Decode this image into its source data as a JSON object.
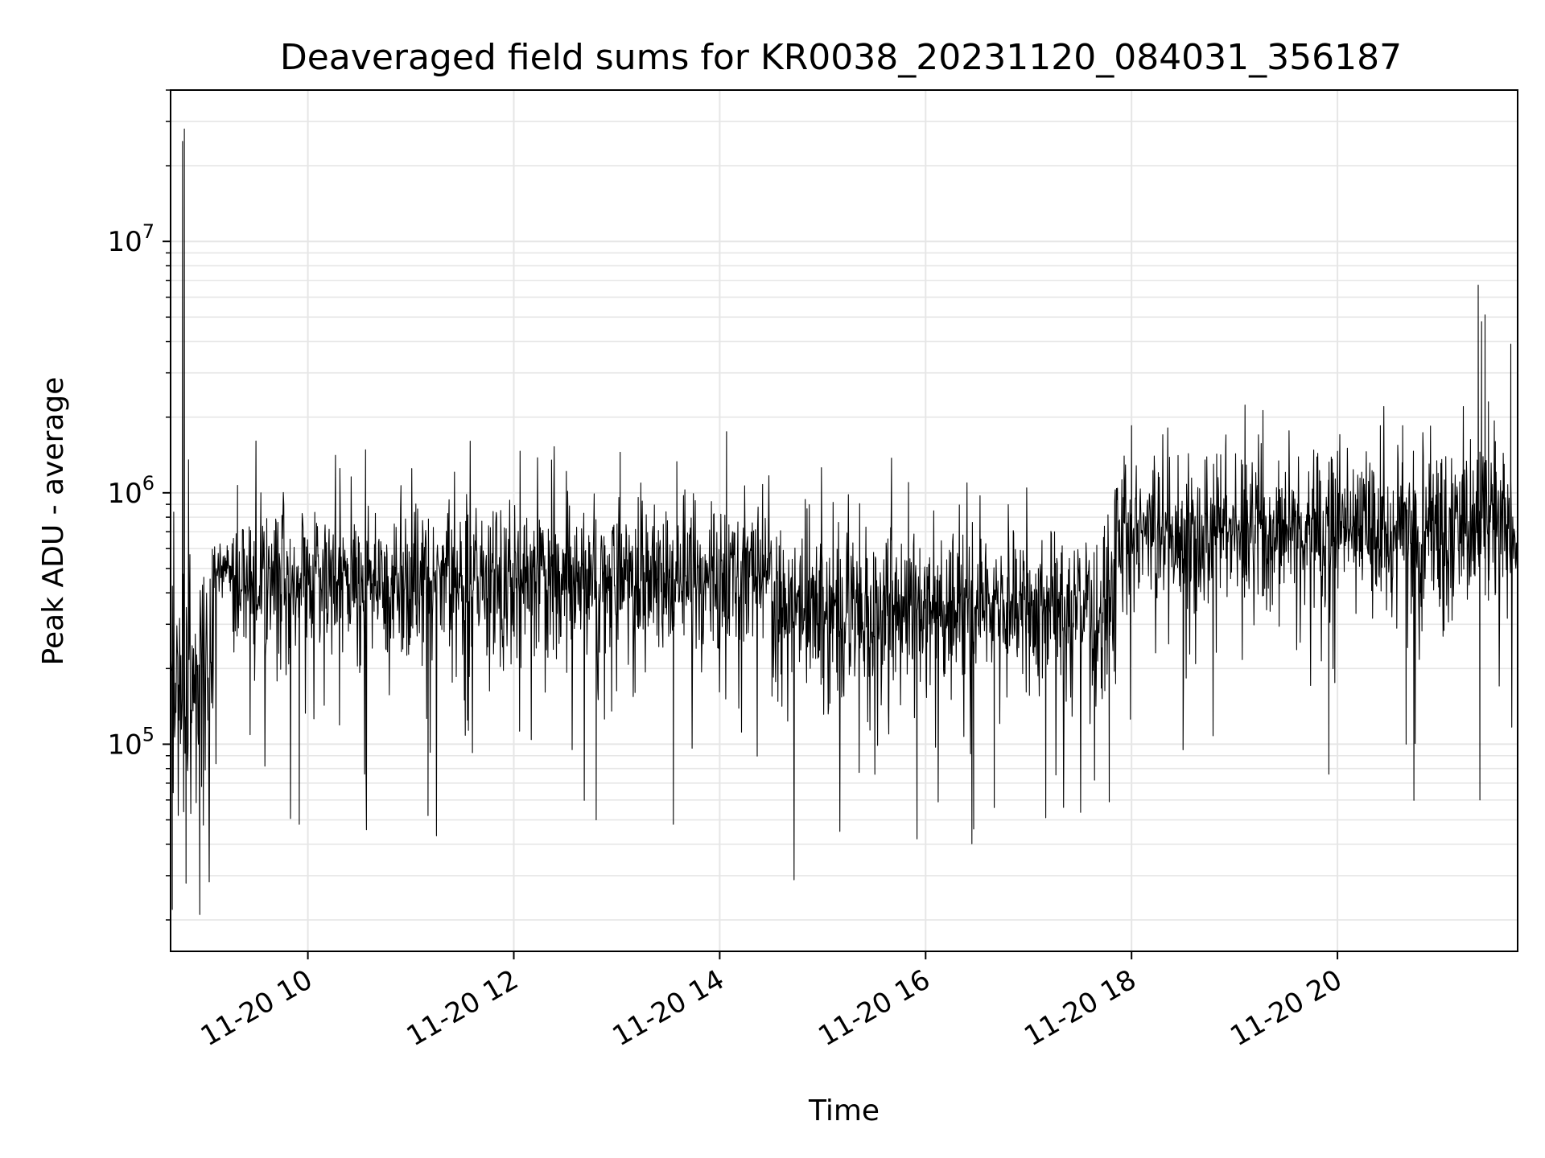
{
  "chart_data": {
    "type": "line",
    "title": "Deaveraged field sums for KR0038_20231120_084031_356187",
    "xlabel": "Time",
    "ylabel": "Peak ADU - average",
    "yscale": "log",
    "grid": true,
    "grid_minor": true,
    "line_color": "#000000",
    "grid_color": "#e6e6e6",
    "xlim": [
      "2023-11-20 08:40",
      "2023-11-20 21:45"
    ],
    "ylim": [
      15000,
      40000000
    ],
    "x_ticks": [
      {
        "time": "2023-11-20 10:00",
        "label": "11-20 10"
      },
      {
        "time": "2023-11-20 12:00",
        "label": "11-20 12"
      },
      {
        "time": "2023-11-20 14:00",
        "label": "11-20 14"
      },
      {
        "time": "2023-11-20 16:00",
        "label": "11-20 16"
      },
      {
        "time": "2023-11-20 18:00",
        "label": "11-20 18"
      },
      {
        "time": "2023-11-20 20:00",
        "label": "11-20 20"
      }
    ],
    "y_ticks": [
      {
        "value": 100000,
        "base": "10",
        "exp": "5"
      },
      {
        "value": 1000000,
        "base": "10",
        "exp": "6"
      },
      {
        "value": 10000000,
        "base": "10",
        "exp": "7"
      }
    ],
    "series": [
      {
        "baseline_segments": [
          {
            "start": "2023-11-20 08:40",
            "end": "2023-11-20 09:05",
            "median": 170000,
            "spread": 0.55
          },
          {
            "start": "2023-11-20 09:05",
            "end": "2023-11-20 09:15",
            "median": 500000,
            "spread": 0.12
          },
          {
            "start": "2023-11-20 09:15",
            "end": "2023-11-20 12:00",
            "median": 430000,
            "spread": 0.28
          },
          {
            "start": "2023-11-20 12:00",
            "end": "2023-11-20 14:30",
            "median": 460000,
            "spread": 0.28
          },
          {
            "start": "2023-11-20 14:30",
            "end": "2023-11-20 17:50",
            "median": 330000,
            "spread": 0.3
          },
          {
            "start": "2023-11-20 17:50",
            "end": "2023-11-20 21:45",
            "median": 700000,
            "spread": 0.27
          }
        ],
        "peaks": [
          {
            "time": "2023-11-20 08:48",
            "value": 28000000
          },
          {
            "time": "2023-11-20 08:47",
            "value": 25000000
          },
          {
            "time": "2023-11-20 21:22",
            "value": 6700000
          },
          {
            "time": "2023-11-20 21:24",
            "value": 4800000
          },
          {
            "time": "2023-11-20 21:26",
            "value": 5100000
          },
          {
            "time": "2023-11-20 21:28",
            "value": 2300000
          },
          {
            "time": "2023-11-20 21:41",
            "value": 3900000
          },
          {
            "time": "2023-11-20 21:32",
            "value": 1600000
          },
          {
            "time": "2023-11-20 14:04",
            "value": 1750000
          },
          {
            "time": "2023-11-20 12:22",
            "value": 1350000
          },
          {
            "time": "2023-11-20 13:02",
            "value": 1450000
          },
          {
            "time": "2023-11-20 13:35",
            "value": 1330000
          },
          {
            "time": "2023-11-20 15:50",
            "value": 1100000
          },
          {
            "time": "2023-11-20 09:19",
            "value": 1070000
          },
          {
            "time": "2023-11-20 18:00",
            "value": 1850000
          },
          {
            "time": "2023-11-20 18:55",
            "value": 1700000
          },
          {
            "time": "2023-11-20 20:25",
            "value": 1850000
          },
          {
            "time": "2023-11-20 20:38",
            "value": 1850000
          }
        ],
        "dips": [
          {
            "time": "2023-11-20 08:57",
            "value": 21000
          },
          {
            "time": "2023-11-20 08:49",
            "value": 28000
          },
          {
            "time": "2023-11-20 08:41",
            "value": 22000
          },
          {
            "time": "2023-11-20 15:55",
            "value": 42000
          },
          {
            "time": "2023-11-20 16:28",
            "value": 46000
          },
          {
            "time": "2023-11-20 13:33",
            "value": 48000
          },
          {
            "time": "2023-11-20 09:55",
            "value": 48000
          },
          {
            "time": "2023-11-20 12:48",
            "value": 50000
          },
          {
            "time": "2023-11-20 17:10",
            "value": 51000
          },
          {
            "time": "2023-11-20 11:10",
            "value": 52000
          },
          {
            "time": "2023-11-20 16:40",
            "value": 56000
          },
          {
            "time": "2023-11-20 17:47",
            "value": 59000
          },
          {
            "time": "2023-11-20 21:23",
            "value": 60000
          },
          {
            "time": "2023-11-20 19:55",
            "value": 76000
          },
          {
            "time": "2023-11-20 18:30",
            "value": 95000
          },
          {
            "time": "2023-11-20 20:40",
            "value": 100000
          }
        ]
      }
    ]
  }
}
